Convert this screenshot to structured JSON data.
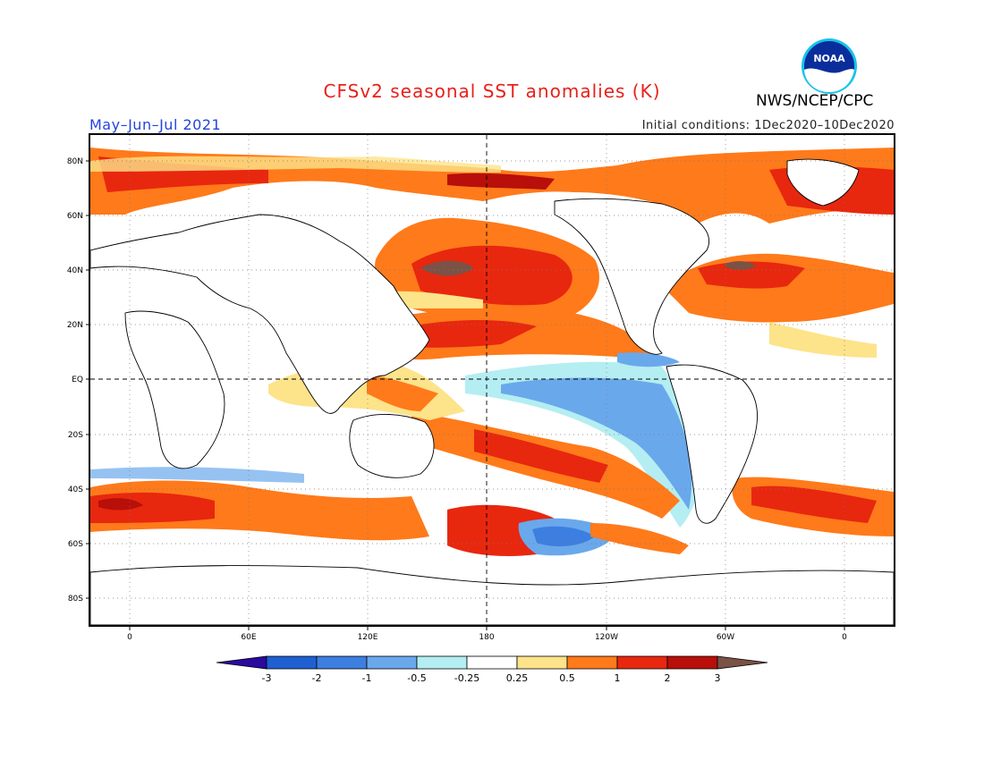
{
  "title": "CFSv2 seasonal SST anomalies (K)",
  "season": "May–Jun–Jul 2021",
  "initial_conditions": "Initial conditions: 1Dec2020–10Dec2020",
  "agency": "NWS/NCEP/CPC",
  "logo_text": "NOAA",
  "lat_labels": [
    "80N",
    "60N",
    "40N",
    "20N",
    "EQ",
    "20S",
    "40S",
    "60S",
    "80S"
  ],
  "lon_labels": [
    "0",
    "60E",
    "120E",
    "180",
    "120W",
    "60W",
    "0"
  ],
  "colorbar": {
    "ticks": [
      "-3",
      "-2",
      "-1",
      "-0.5",
      "-0.25",
      "0.25",
      "0.5",
      "1",
      "2",
      "3"
    ],
    "colors": [
      "#2b0a9e",
      "#1f5fd1",
      "#3d7fe0",
      "#6aa8ec",
      "#b4eef2",
      "#ffffff",
      "#fde38a",
      "#ff7a1a",
      "#e8270f",
      "#b80f0a",
      "#7a5246"
    ]
  }
}
